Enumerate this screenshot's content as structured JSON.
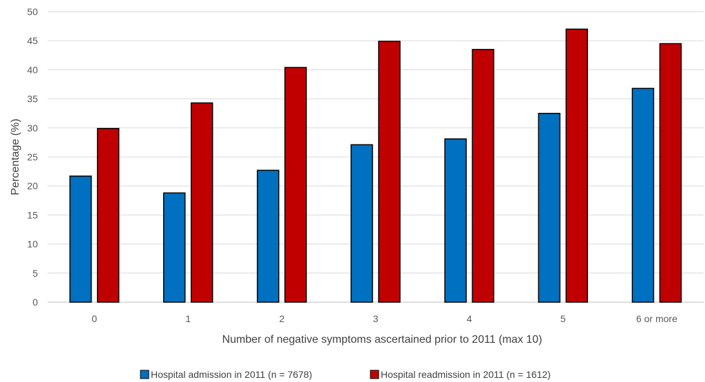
{
  "chart_data": {
    "type": "bar",
    "title": "",
    "xlabel": "Number of negative symptoms ascertained prior to 2011 (max 10)",
    "ylabel": "Percentage (%)",
    "ylim": [
      0,
      50
    ],
    "yticks": [
      0,
      5,
      10,
      15,
      20,
      25,
      30,
      35,
      40,
      45,
      50
    ],
    "grid": true,
    "legend_position": "bottom",
    "categories": [
      "0",
      "1",
      "2",
      "3",
      "4",
      "5",
      "6 or more"
    ],
    "series": [
      {
        "name": "Hospital admission in 2011 (n = 7678)",
        "color": "#0070c0",
        "values": [
          21.7,
          18.8,
          22.7,
          27.1,
          28.1,
          32.5,
          36.8
        ]
      },
      {
        "name": "Hospital readmission in 2011 (n = 1612)",
        "color": "#c00000",
        "values": [
          29.9,
          34.3,
          40.4,
          44.9,
          43.5,
          47.0,
          44.5
        ]
      }
    ]
  }
}
